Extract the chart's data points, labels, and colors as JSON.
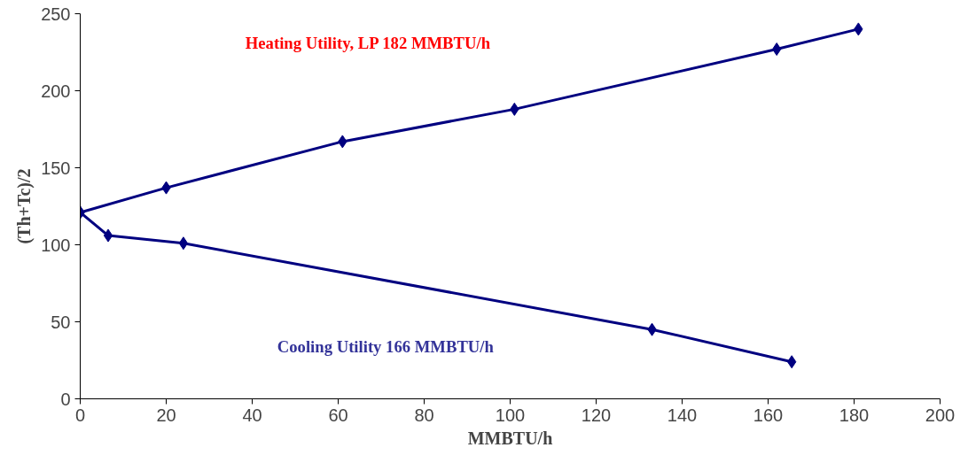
{
  "chart_data": {
    "type": "line",
    "xlabel": "MMBTU/h",
    "ylabel": "(Th+Tc)/2",
    "xlim": [
      0,
      200
    ],
    "xticks": [
      0,
      20,
      40,
      60,
      80,
      100,
      120,
      140,
      160,
      180,
      200
    ],
    "ylim": [
      0,
      250
    ],
    "yticks": [
      0,
      50,
      100,
      150,
      200,
      250
    ],
    "grid": false,
    "marker": "diamond",
    "line_style": "solid",
    "series": [
      {
        "color": "#000080",
        "x": [
          0,
          20,
          61,
          101,
          162,
          181
        ],
        "values": [
          121,
          137,
          167,
          188,
          227,
          240
        ]
      },
      {
        "color": "#000080",
        "x": [
          0,
          6.5,
          24,
          133,
          165.5
        ],
        "values": [
          121,
          106,
          101,
          45,
          24
        ]
      }
    ],
    "annotations": [
      "Heating Utility, LP 182 MMBTU/h",
      "Cooling Utility 166 MMBTU/h"
    ]
  }
}
